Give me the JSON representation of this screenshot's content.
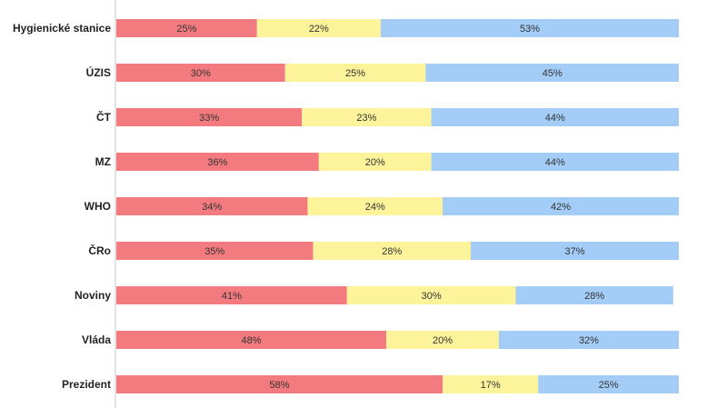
{
  "chart_data": {
    "type": "bar",
    "orientation": "horizontal",
    "stacked": "percent",
    "title": "",
    "xlabel": "",
    "ylabel": "",
    "xlim": [
      0,
      100
    ],
    "grid": false,
    "legend": "none",
    "categories": [
      "Hygienické stanice",
      "ÚZIS",
      "ČT",
      "MZ",
      "WHO",
      "ČRo",
      "Noviny",
      "Vláda",
      "Prezident"
    ],
    "series": [
      {
        "name": "segment-1",
        "color": "#f37b7f",
        "values": [
          25,
          30,
          33,
          36,
          34,
          35,
          41,
          48,
          58
        ],
        "labels": [
          "25%",
          "30%",
          "33%",
          "36%",
          "34%",
          "35%",
          "41%",
          "48%",
          "58%"
        ]
      },
      {
        "name": "segment-2",
        "color": "#fdf39a",
        "values": [
          22,
          25,
          23,
          20,
          24,
          28,
          30,
          20,
          17
        ],
        "labels": [
          "22%",
          "25%",
          "23%",
          "20%",
          "24%",
          "28%",
          "30%",
          "20%",
          "17%"
        ]
      },
      {
        "name": "segment-3",
        "color": "#a3cdf7",
        "values": [
          53,
          45,
          44,
          44,
          42,
          37,
          28,
          32,
          25
        ],
        "labels": [
          "53%",
          "45%",
          "44%",
          "44%",
          "42%",
          "37%",
          "28%",
          "32%",
          "25%"
        ]
      }
    ]
  }
}
